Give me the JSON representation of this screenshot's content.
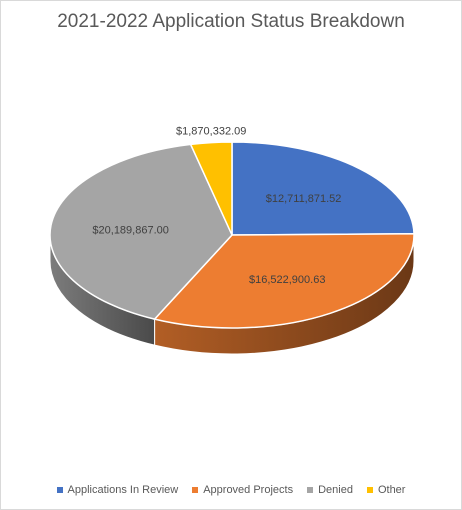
{
  "chart_data": {
    "type": "pie",
    "title": "2021-2022 Application Status Breakdown",
    "categories": [
      "Applications In Review",
      "Approved Projects",
      "Denied",
      "Other"
    ],
    "values": [
      12711871.52,
      16522900.63,
      20189867.0,
      1870332.09
    ],
    "data_labels": [
      "$12,711,871.52",
      "$16,522,900.63",
      "$20,189,867.00",
      "$1,870,332.09"
    ],
    "colors": [
      "#4472C4",
      "#ED7D31",
      "#A5A5A5",
      "#FFC000"
    ],
    "legend_position": "bottom",
    "style": "3d"
  }
}
